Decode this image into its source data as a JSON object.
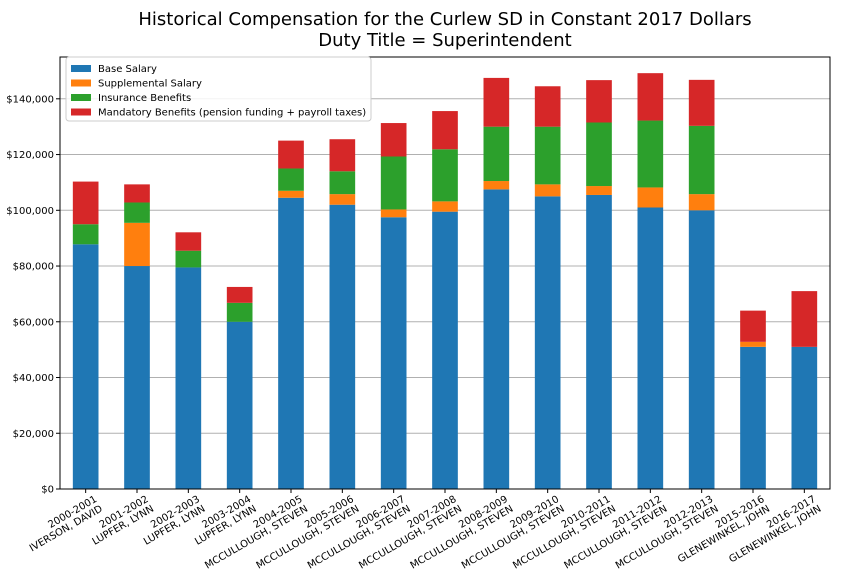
{
  "chart_data": {
    "type": "bar",
    "stacked": true,
    "title": "Historical Compensation for the Curlew SD in Constant 2017 Dollars",
    "subtitle": "Duty Title = Superintendent",
    "xlabel": "",
    "ylabel": "",
    "ylim": [
      0,
      155000
    ],
    "yticks": [
      "$0",
      "$20,000",
      "$40,000",
      "$60,000",
      "$80,000",
      "$100,000",
      "$120,000",
      "$140,000"
    ],
    "ytick_values": [
      0,
      20000,
      40000,
      60000,
      80000,
      100000,
      120000,
      140000
    ],
    "grid": "horizontal",
    "legend_position": "top-left",
    "categories": [
      [
        "2000-2001",
        "IVERSON, DAVID"
      ],
      [
        "2001-2002",
        "LUPFER, LYNN"
      ],
      [
        "2002-2003",
        "LUPFER, LYNN"
      ],
      [
        "2003-2004",
        "LUPFER, LYNN"
      ],
      [
        "2004-2005",
        "MCCULLOUGH, STEVEN"
      ],
      [
        "2005-2006",
        "MCCULLOUGH, STEVEN"
      ],
      [
        "2006-2007",
        "MCCULLOUGH, STEVEN"
      ],
      [
        "2007-2008",
        "MCCULLOUGH, STEVEN"
      ],
      [
        "2008-2009",
        "MCCULLOUGH, STEVEN"
      ],
      [
        "2009-2010",
        "MCCULLOUGH, STEVEN"
      ],
      [
        "2010-2011",
        "MCCULLOUGH, STEVEN"
      ],
      [
        "2011-2012",
        "MCCULLOUGH, STEVEN"
      ],
      [
        "2012-2013",
        "MCCULLOUGH, STEVEN"
      ],
      [
        "2015-2016",
        "GLENEWINKEL, JOHN"
      ],
      [
        "2016-2017",
        "GLENEWINKEL, JOHN"
      ]
    ],
    "series": [
      {
        "name": "Base Salary",
        "color": "#1f77b4",
        "values": [
          87800,
          80000,
          79500,
          60000,
          104500,
          102000,
          97500,
          99500,
          107500,
          105000,
          105500,
          101000,
          100000,
          51000,
          51000
        ]
      },
      {
        "name": "Supplemental Salary",
        "color": "#ff7f0e",
        "values": [
          0,
          15500,
          0,
          0,
          2500,
          3800,
          2800,
          3700,
          3000,
          4300,
          3200,
          7200,
          5800,
          1800,
          0
        ]
      },
      {
        "name": "Insurance Benefits",
        "color": "#2ca02c",
        "values": [
          7200,
          7300,
          6000,
          6800,
          8000,
          8200,
          19000,
          18700,
          19500,
          20700,
          22800,
          24000,
          24500,
          0,
          0
        ]
      },
      {
        "name": "Mandatory Benefits (pension funding + payroll taxes)",
        "color": "#d62728",
        "values": [
          15300,
          6500,
          6600,
          5700,
          10000,
          11500,
          12000,
          13700,
          17500,
          14500,
          15200,
          17000,
          16500,
          11200,
          20000
        ]
      }
    ]
  }
}
